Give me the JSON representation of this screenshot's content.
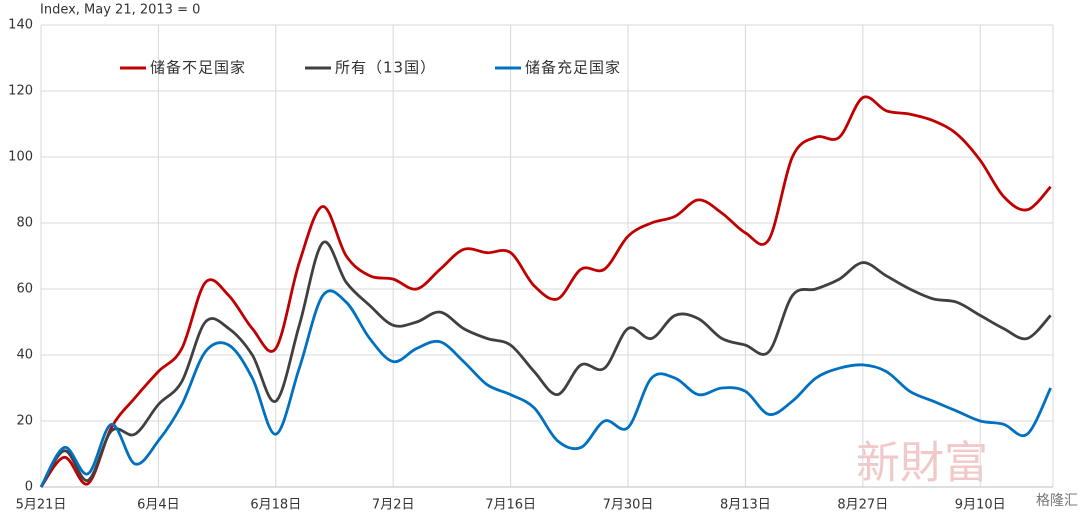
{
  "chart_data": {
    "type": "line",
    "y_label": "Index, May 21, 2013 = 0",
    "watermark": "新財富",
    "brand": "格隆汇",
    "x": [
      0,
      2,
      4,
      6,
      8,
      10,
      12,
      14,
      16,
      18,
      20,
      22,
      24,
      26,
      28,
      30,
      32,
      34,
      36,
      38,
      40,
      42,
      44,
      46,
      48,
      50,
      52,
      54,
      56,
      58,
      60,
      62,
      64,
      66,
      68,
      70,
      72,
      74,
      76,
      78,
      80,
      82,
      84,
      86
    ],
    "xlim": [
      0,
      86.2
    ],
    "xticks": [
      {
        "value": 0,
        "label": "5月21日"
      },
      {
        "value": 10,
        "label": "6月4日"
      },
      {
        "value": 20,
        "label": "6月18日"
      },
      {
        "value": 30,
        "label": "7月2日"
      },
      {
        "value": 40,
        "label": "7月16日"
      },
      {
        "value": 50,
        "label": "7月30日"
      },
      {
        "value": 60,
        "label": "8月13日"
      },
      {
        "value": 70,
        "label": "8月27日"
      },
      {
        "value": 80,
        "label": "9月10日"
      }
    ],
    "ylim": [
      0,
      140
    ],
    "yticks": [
      0,
      20,
      40,
      60,
      80,
      100,
      120,
      140
    ],
    "grid": true,
    "series": [
      {
        "name": "储备不足国家",
        "color": "#c00000",
        "values": [
          0,
          9,
          1,
          18,
          27,
          35,
          42,
          62,
          58,
          48,
          42,
          68,
          85,
          70,
          64,
          63,
          60,
          66,
          72,
          71,
          71,
          61,
          57,
          66,
          66,
          76,
          80,
          82,
          87,
          83,
          77,
          75,
          100,
          106,
          106,
          118,
          114,
          113,
          111,
          107,
          99,
          88,
          84,
          91
        ]
      },
      {
        "name": "所有（13国）",
        "color": "#404040",
        "values": [
          0,
          11,
          2,
          17,
          16,
          25,
          32,
          50,
          48,
          40,
          26,
          49,
          74,
          62,
          55,
          49,
          50,
          53,
          48,
          45,
          43,
          35,
          28,
          37,
          36,
          48,
          45,
          52,
          51,
          45,
          43,
          41,
          58,
          60,
          63,
          68,
          64,
          60,
          57,
          56,
          52,
          48,
          45,
          52
        ]
      },
      {
        "name": "储备充足国家",
        "color": "#0070c0",
        "values": [
          0,
          12,
          4,
          19,
          7,
          14,
          25,
          41,
          43,
          33,
          16,
          36,
          58,
          56,
          45,
          38,
          42,
          44,
          38,
          31,
          28,
          24,
          14,
          12,
          20,
          18,
          33,
          33,
          28,
          30,
          29,
          22,
          26,
          33,
          36,
          37,
          35,
          29,
          26,
          23,
          20,
          19,
          16,
          30
        ]
      }
    ]
  }
}
